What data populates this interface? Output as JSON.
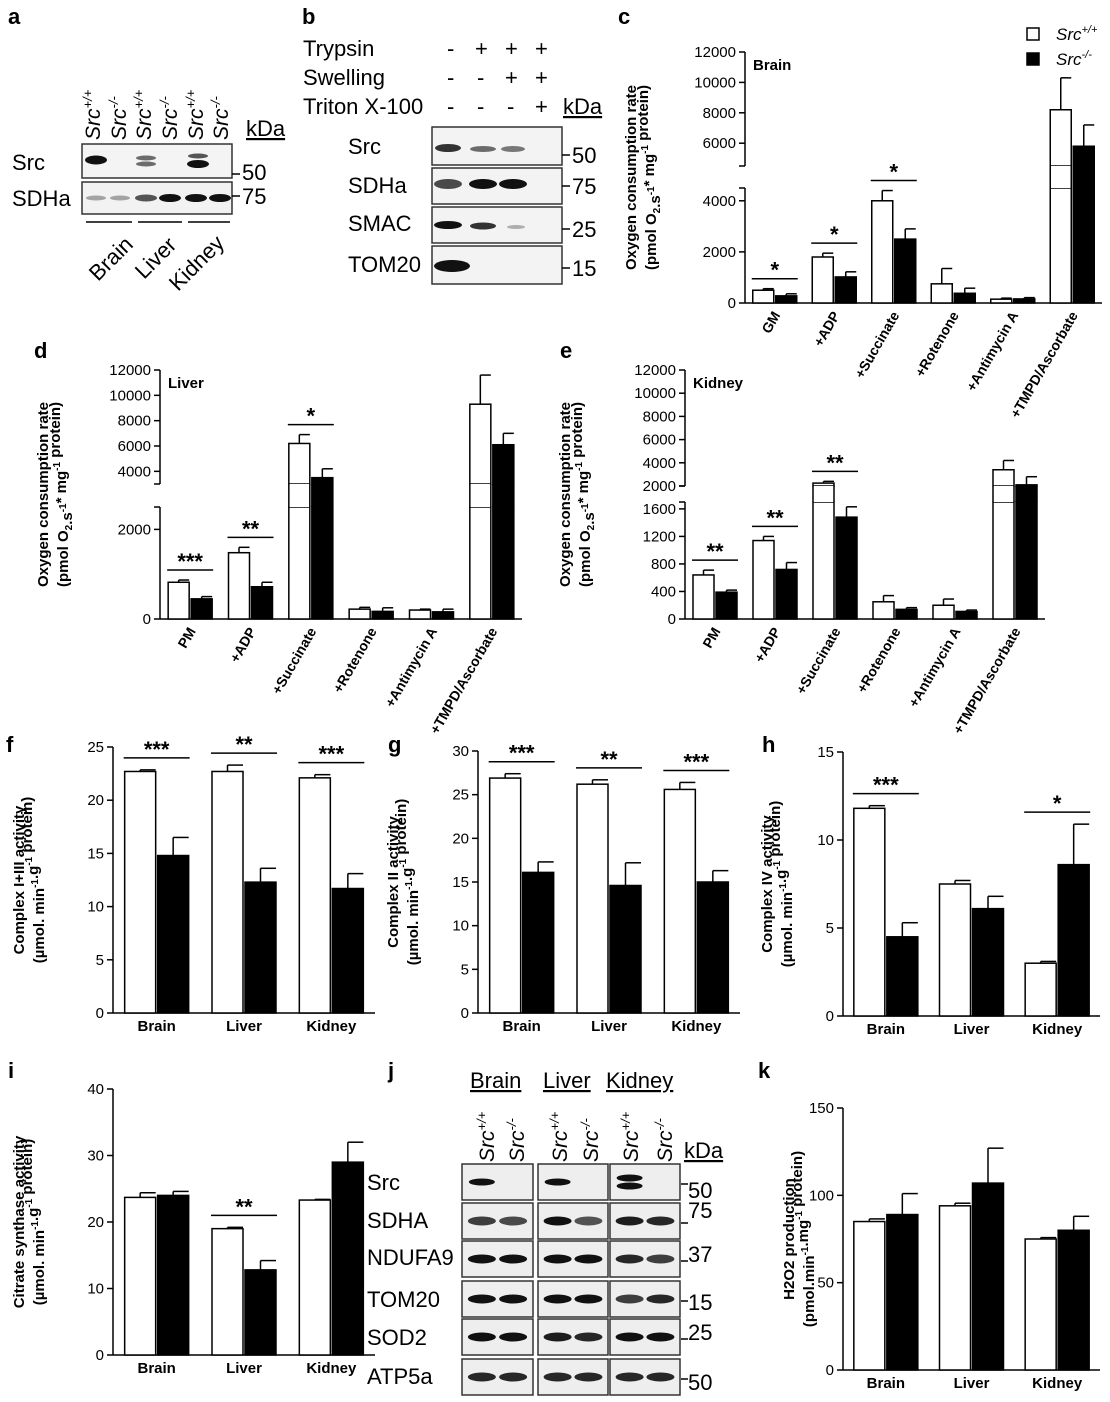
{
  "figure": {
    "panels": {
      "a": {
        "label": "a",
        "kda_label": "kDa",
        "lanes": [
          "Src+/+",
          "Src-/-",
          "Src+/+",
          "Src-/-",
          "Src+/+",
          "Src-/-"
        ],
        "rows": [
          {
            "name": "Src",
            "marker": "50"
          },
          {
            "name": "SDHa",
            "marker": "75"
          }
        ],
        "tissues": [
          "Brain",
          "Liver",
          "Kidney"
        ]
      },
      "b": {
        "label": "b",
        "kda_label": "kDa",
        "conditions": [
          {
            "name": "Trypsin",
            "signs": [
              "-",
              "+",
              "+",
              "+"
            ]
          },
          {
            "name": "Swelling",
            "signs": [
              "-",
              "-",
              "+",
              "+"
            ]
          },
          {
            "name": "Triton X-100",
            "signs": [
              "-",
              "-",
              "-",
              "+"
            ]
          }
        ],
        "rows": [
          {
            "name": "Src",
            "marker": "50"
          },
          {
            "name": "SDHa",
            "marker": "75"
          },
          {
            "name": "SMAC",
            "marker": "25"
          },
          {
            "name": "TOM20",
            "marker": "15"
          }
        ]
      },
      "j": {
        "label": "j",
        "kda_label": "kDa",
        "tissues": [
          "Brain",
          "Liver",
          "Kidney"
        ],
        "lanes": [
          "Src+/+",
          "Src-/-",
          "Src+/+",
          "Src-/-",
          "Src+/+",
          "Src-/-"
        ],
        "rows": [
          {
            "name": "Src",
            "marker": "50"
          },
          {
            "name": "SDHA",
            "marker": "75"
          },
          {
            "name": "NDUFA9",
            "marker": "37"
          },
          {
            "name": "TOM20",
            "marker": "15"
          },
          {
            "name": "SOD2",
            "marker": "25"
          },
          {
            "name": "ATP5a",
            "marker": "50"
          }
        ]
      }
    },
    "legend": {
      "items": [
        {
          "name": "Src",
          "sup": "+/+",
          "color": "#ffffff"
        },
        {
          "name": "Src",
          "sup": "-/-",
          "color": "#000000"
        }
      ]
    }
  },
  "chart_data": [
    {
      "panel": "c",
      "type": "bar",
      "title": "Brain",
      "ylabel_line1": "Oxygen consumption rate",
      "ylabel_line2": "(pmol O2.s-1* mg-1 protein)",
      "broken_axis": true,
      "ylim_lower": [
        0,
        4500
      ],
      "ylim_upper": [
        4500,
        12000
      ],
      "yticks": [
        0,
        2000,
        4000,
        6000,
        8000,
        10000,
        12000
      ],
      "categories": [
        "GM",
        "+ADP",
        "+Succinate",
        "+Rotenone",
        "+Antimycin A",
        "+TMPD/Ascorbate"
      ],
      "series": [
        {
          "name": "Src+/+",
          "values": [
            500,
            1800,
            4000,
            750,
            150,
            8200
          ],
          "errors": [
            60,
            150,
            400,
            600,
            40,
            2100
          ]
        },
        {
          "name": "Src-/-",
          "values": [
            280,
            1020,
            2500,
            380,
            160,
            5800
          ],
          "errors": [
            80,
            200,
            400,
            200,
            50,
            1400
          ]
        }
      ],
      "significance": [
        {
          "category": 0,
          "label": "*"
        },
        {
          "category": 1,
          "label": "*"
        },
        {
          "category": 2,
          "label": "*"
        }
      ]
    },
    {
      "panel": "d",
      "type": "bar",
      "title": "Liver",
      "ylabel_line1": "Oxygen consumption rate",
      "ylabel_line2": "(pmol O2.s-1* mg-1 protein)",
      "broken_axis": true,
      "ylim_lower": [
        0,
        2500
      ],
      "ylim_upper": [
        3000,
        12000
      ],
      "yticks": [
        0,
        2000,
        4000,
        6000,
        8000,
        10000,
        12000
      ],
      "categories": [
        "PM",
        "+ADP",
        "+Succinate",
        "+Rotenone",
        "+Antimycin A",
        "+TMPD/Ascorbate"
      ],
      "series": [
        {
          "name": "Src+/+",
          "values": [
            820,
            1480,
            6200,
            220,
            200,
            9300
          ],
          "errors": [
            50,
            120,
            700,
            40,
            20,
            2300
          ]
        },
        {
          "name": "Src-/-",
          "values": [
            450,
            720,
            3500,
            170,
            160,
            6100
          ],
          "errors": [
            50,
            100,
            700,
            80,
            60,
            900
          ]
        }
      ],
      "significance": [
        {
          "category": 0,
          "label": "***"
        },
        {
          "category": 1,
          "label": "**"
        },
        {
          "category": 2,
          "label": "*"
        }
      ]
    },
    {
      "panel": "e",
      "type": "bar",
      "title": "Kidney",
      "ylabel_line1": "Oxygen consumption rate",
      "ylabel_line2": "(pmol O2.s-1* mg-1 protein)",
      "broken_axis": true,
      "ylim_lower": [
        0,
        1700
      ],
      "ylim_upper": [
        2000,
        12000
      ],
      "yticks_lower": [
        0,
        400,
        800,
        1200,
        1600
      ],
      "yticks_upper": [
        2000,
        4000,
        6000,
        8000,
        10000,
        12000
      ],
      "categories": [
        "PM",
        "+ADP",
        "+Succinate",
        "+Rotenone",
        "+Antimycin A",
        "+TMPD/Ascorbate"
      ],
      "series": [
        {
          "name": "Src+/+",
          "values": [
            640,
            1140,
            2250,
            250,
            200,
            3400
          ],
          "errors": [
            70,
            60,
            150,
            90,
            90,
            800
          ]
        },
        {
          "name": "Src-/-",
          "values": [
            390,
            720,
            1480,
            140,
            110,
            2100
          ],
          "errors": [
            30,
            100,
            150,
            25,
            20,
            700
          ]
        }
      ],
      "significance": [
        {
          "category": 0,
          "label": "**"
        },
        {
          "category": 1,
          "label": "**"
        },
        {
          "category": 2,
          "label": "**"
        }
      ]
    },
    {
      "panel": "f",
      "type": "bar",
      "ylabel_line1": "Complex I+III activity",
      "ylabel_line2": "(µmol. min-1.g-1 protein)",
      "ylim": [
        0,
        25
      ],
      "yticks": [
        0,
        5,
        10,
        15,
        20,
        25
      ],
      "categories": [
        "Brain",
        "Liver",
        "Kidney"
      ],
      "series": [
        {
          "name": "Src+/+",
          "values": [
            22.7,
            22.7,
            22.1
          ],
          "errors": [
            0.15,
            0.6,
            0.3
          ]
        },
        {
          "name": "Src-/-",
          "values": [
            14.8,
            12.3,
            11.7
          ],
          "errors": [
            1.7,
            1.3,
            1.4
          ]
        }
      ],
      "significance": [
        {
          "category": 0,
          "label": "***"
        },
        {
          "category": 1,
          "label": "**"
        },
        {
          "category": 2,
          "label": "***"
        }
      ]
    },
    {
      "panel": "g",
      "type": "bar",
      "ylabel_line1": "Complex II activity",
      "ylabel_line2": "(µmol. min-1.g-1 protein)",
      "ylim": [
        0,
        30
      ],
      "yticks": [
        0,
        5,
        10,
        15,
        20,
        25,
        30
      ],
      "categories": [
        "Brain",
        "Liver",
        "Kidney"
      ],
      "series": [
        {
          "name": "Src+/+",
          "values": [
            26.9,
            26.2,
            25.6
          ],
          "errors": [
            0.5,
            0.5,
            0.8
          ]
        },
        {
          "name": "Src-/-",
          "values": [
            16.1,
            14.6,
            15.0
          ],
          "errors": [
            1.2,
            2.6,
            1.3
          ]
        }
      ],
      "significance": [
        {
          "category": 0,
          "label": "***"
        },
        {
          "category": 1,
          "label": "**"
        },
        {
          "category": 2,
          "label": "***"
        }
      ]
    },
    {
      "panel": "h",
      "type": "bar",
      "ylabel_line1": "Complex IV activity",
      "ylabel_line2": "(µmol. min-1.g-1 protein)",
      "ylim": [
        0,
        15
      ],
      "yticks": [
        0,
        5,
        10,
        15
      ],
      "categories": [
        "Brain",
        "Liver",
        "Kidney"
      ],
      "series": [
        {
          "name": "Src+/+",
          "values": [
            11.8,
            7.5,
            3.0
          ],
          "errors": [
            0.15,
            0.2,
            0.1
          ]
        },
        {
          "name": "Src-/-",
          "values": [
            4.5,
            6.1,
            8.6
          ],
          "errors": [
            0.8,
            0.7,
            2.3
          ]
        }
      ],
      "significance": [
        {
          "category": 0,
          "label": "***"
        },
        {
          "category": 2,
          "label": "*"
        }
      ]
    },
    {
      "panel": "i",
      "type": "bar",
      "ylabel_line1": "Citrate synthase activity",
      "ylabel_line2": "(µmol. min-1.g-1 protein)",
      "ylim": [
        0,
        40
      ],
      "yticks": [
        0,
        10,
        20,
        30,
        40
      ],
      "categories": [
        "Brain",
        "Liver",
        "Kidney"
      ],
      "series": [
        {
          "name": "Src+/+",
          "values": [
            23.7,
            19.0,
            23.3
          ],
          "errors": [
            0.7,
            0.2,
            0.1
          ]
        },
        {
          "name": "Src-/-",
          "values": [
            24.0,
            12.8,
            29.0
          ],
          "errors": [
            0.6,
            1.4,
            3.0
          ]
        }
      ],
      "significance": [
        {
          "category": 1,
          "label": "**"
        }
      ]
    },
    {
      "panel": "k",
      "type": "bar",
      "ylabel_line1": "H2O2 production",
      "ylabel_line2": "(pmol.min-1.mg-1 protein)",
      "ylim": [
        0,
        150
      ],
      "yticks": [
        0,
        50,
        100,
        150
      ],
      "categories": [
        "Brain",
        "Liver",
        "Kidney"
      ],
      "series": [
        {
          "name": "Src+/+",
          "values": [
            85,
            94,
            75
          ],
          "errors": [
            1.5,
            1.5,
            0.8
          ]
        },
        {
          "name": "Src-/-",
          "values": [
            89,
            107,
            80
          ],
          "errors": [
            12,
            20,
            8
          ]
        }
      ],
      "significance": []
    }
  ]
}
